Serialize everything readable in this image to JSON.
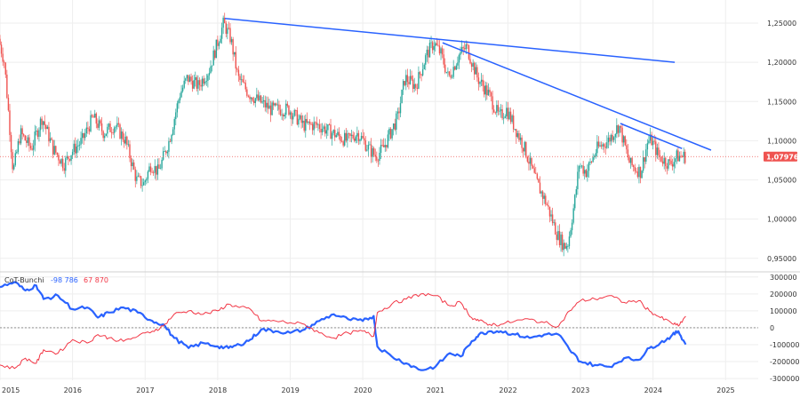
{
  "chart_data": [
    {
      "type": "candlestick",
      "pane": "price",
      "y_ticks": [
        "1,25000",
        "1,20000",
        "1,15000",
        "1,10000",
        "1,05000",
        "1,00000",
        "0,95000"
      ],
      "y_tick_values": [
        1.25,
        1.2,
        1.15,
        1.1,
        1.05,
        1.0,
        0.95
      ],
      "ylim": [
        0.935,
        1.275
      ],
      "current_price": 1.07976,
      "current_price_label": "1,07976",
      "price_path": [
        [
          2015.0,
          1.23
        ],
        [
          2015.08,
          1.2
        ],
        [
          2015.15,
          1.12
        ],
        [
          2015.2,
          1.06
        ],
        [
          2015.3,
          1.11
        ],
        [
          2015.45,
          1.09
        ],
        [
          2015.6,
          1.13
        ],
        [
          2015.75,
          1.09
        ],
        [
          2015.9,
          1.07
        ],
        [
          2016.0,
          1.085
        ],
        [
          2016.15,
          1.1
        ],
        [
          2016.3,
          1.13
        ],
        [
          2016.45,
          1.11
        ],
        [
          2016.6,
          1.12
        ],
        [
          2016.75,
          1.1
        ],
        [
          2016.9,
          1.05
        ],
        [
          2017.0,
          1.045
        ],
        [
          2017.1,
          1.07
        ],
        [
          2017.2,
          1.06
        ],
        [
          2017.35,
          1.1
        ],
        [
          2017.5,
          1.16
        ],
        [
          2017.6,
          1.18
        ],
        [
          2017.75,
          1.17
        ],
        [
          2017.9,
          1.19
        ],
        [
          2018.0,
          1.22
        ],
        [
          2018.1,
          1.25
        ],
        [
          2018.2,
          1.23
        ],
        [
          2018.3,
          1.18
        ],
        [
          2018.45,
          1.16
        ],
        [
          2018.6,
          1.15
        ],
        [
          2018.75,
          1.14
        ],
        [
          2018.9,
          1.14
        ],
        [
          2019.0,
          1.14
        ],
        [
          2019.2,
          1.12
        ],
        [
          2019.4,
          1.12
        ],
        [
          2019.6,
          1.11
        ],
        [
          2019.8,
          1.1
        ],
        [
          2019.95,
          1.11
        ],
        [
          2020.1,
          1.09
        ],
        [
          2020.2,
          1.08
        ],
        [
          2020.3,
          1.09
        ],
        [
          2020.5,
          1.13
        ],
        [
          2020.6,
          1.18
        ],
        [
          2020.75,
          1.17
        ],
        [
          2020.9,
          1.21
        ],
        [
          2021.0,
          1.225
        ],
        [
          2021.1,
          1.21
        ],
        [
          2021.2,
          1.18
        ],
        [
          2021.35,
          1.21
        ],
        [
          2021.45,
          1.22
        ],
        [
          2021.6,
          1.18
        ],
        [
          2021.75,
          1.16
        ],
        [
          2021.9,
          1.13
        ],
        [
          2022.0,
          1.14
        ],
        [
          2022.1,
          1.12
        ],
        [
          2022.25,
          1.09
        ],
        [
          2022.4,
          1.05
        ],
        [
          2022.55,
          1.02
        ],
        [
          2022.7,
          0.98
        ],
        [
          2022.8,
          0.965
        ],
        [
          2022.85,
          0.97
        ],
        [
          2022.95,
          1.03
        ],
        [
          2023.0,
          1.07
        ],
        [
          2023.1,
          1.06
        ],
        [
          2023.25,
          1.09
        ],
        [
          2023.4,
          1.1
        ],
        [
          2023.55,
          1.12
        ],
        [
          2023.7,
          1.07
        ],
        [
          2023.85,
          1.06
        ],
        [
          2023.95,
          1.1
        ],
        [
          2024.0,
          1.1
        ],
        [
          2024.1,
          1.08
        ],
        [
          2024.25,
          1.07
        ],
        [
          2024.35,
          1.08
        ],
        [
          2024.45,
          1.08
        ]
      ],
      "trendlines": [
        {
          "from": [
            2018.1,
            1.256
          ],
          "to": [
            2024.3,
            1.2
          ]
        },
        {
          "from": [
            2021.1,
            1.225
          ],
          "to": [
            2024.8,
            1.088
          ]
        },
        {
          "from": [
            2023.55,
            1.122
          ],
          "to": [
            2024.4,
            1.09
          ]
        }
      ]
    },
    {
      "type": "line",
      "pane": "indicator",
      "title": "CoT-Bunchi",
      "legend_values": [
        "-98 786",
        "67 870"
      ],
      "y_ticks": [
        "300000",
        "200000",
        "100000",
        "0",
        "-100000",
        "-200000",
        "-300000"
      ],
      "y_tick_values": [
        300000,
        200000,
        100000,
        0,
        -100000,
        -200000,
        -300000
      ],
      "ylim": [
        -310000,
        320000
      ],
      "series": [
        {
          "color": "#2962ff",
          "points": [
            [
              2015.0,
              240000
            ],
            [
              2015.2,
              270000
            ],
            [
              2015.35,
              220000
            ],
            [
              2015.5,
              250000
            ],
            [
              2015.6,
              170000
            ],
            [
              2015.8,
              190000
            ],
            [
              2016.0,
              110000
            ],
            [
              2016.2,
              120000
            ],
            [
              2016.35,
              60000
            ],
            [
              2016.5,
              90000
            ],
            [
              2016.7,
              120000
            ],
            [
              2016.9,
              90000
            ],
            [
              2017.1,
              40000
            ],
            [
              2017.25,
              20000
            ],
            [
              2017.4,
              -60000
            ],
            [
              2017.6,
              -120000
            ],
            [
              2017.8,
              -90000
            ],
            [
              2018.0,
              -110000
            ],
            [
              2018.15,
              -120000
            ],
            [
              2018.3,
              -100000
            ],
            [
              2018.45,
              -70000
            ],
            [
              2018.6,
              -10000
            ],
            [
              2018.8,
              -20000
            ],
            [
              2019.0,
              -30000
            ],
            [
              2019.2,
              -10000
            ],
            [
              2019.4,
              40000
            ],
            [
              2019.6,
              80000
            ],
            [
              2019.8,
              50000
            ],
            [
              2020.0,
              40000
            ],
            [
              2020.15,
              70000
            ],
            [
              2020.2,
              -110000
            ],
            [
              2020.4,
              -170000
            ],
            [
              2020.6,
              -210000
            ],
            [
              2020.8,
              -250000
            ],
            [
              2021.0,
              -230000
            ],
            [
              2021.2,
              -150000
            ],
            [
              2021.35,
              -170000
            ],
            [
              2021.5,
              -80000
            ],
            [
              2021.6,
              -40000
            ],
            [
              2021.75,
              -20000
            ],
            [
              2021.9,
              -20000
            ],
            [
              2022.1,
              -40000
            ],
            [
              2022.3,
              -60000
            ],
            [
              2022.5,
              -40000
            ],
            [
              2022.7,
              -40000
            ],
            [
              2022.85,
              -130000
            ],
            [
              2023.0,
              -200000
            ],
            [
              2023.2,
              -220000
            ],
            [
              2023.4,
              -230000
            ],
            [
              2023.6,
              -180000
            ],
            [
              2023.8,
              -190000
            ],
            [
              2023.95,
              -120000
            ],
            [
              2024.1,
              -90000
            ],
            [
              2024.25,
              -50000
            ],
            [
              2024.35,
              -20000
            ],
            [
              2024.45,
              -98786
            ]
          ]
        },
        {
          "color": "#f23645",
          "points": [
            [
              2015.0,
              -220000
            ],
            [
              2015.2,
              -240000
            ],
            [
              2015.35,
              -180000
            ],
            [
              2015.5,
              -210000
            ],
            [
              2015.6,
              -130000
            ],
            [
              2015.8,
              -150000
            ],
            [
              2016.0,
              -70000
            ],
            [
              2016.2,
              -90000
            ],
            [
              2016.35,
              -40000
            ],
            [
              2016.5,
              -60000
            ],
            [
              2016.7,
              -80000
            ],
            [
              2016.9,
              -50000
            ],
            [
              2017.1,
              -20000
            ],
            [
              2017.25,
              10000
            ],
            [
              2017.4,
              80000
            ],
            [
              2017.6,
              100000
            ],
            [
              2017.8,
              80000
            ],
            [
              2018.0,
              100000
            ],
            [
              2018.15,
              140000
            ],
            [
              2018.3,
              120000
            ],
            [
              2018.45,
              110000
            ],
            [
              2018.6,
              40000
            ],
            [
              2018.8,
              40000
            ],
            [
              2019.0,
              30000
            ],
            [
              2019.2,
              20000
            ],
            [
              2019.4,
              -30000
            ],
            [
              2019.6,
              -60000
            ],
            [
              2019.8,
              -30000
            ],
            [
              2020.0,
              -20000
            ],
            [
              2020.15,
              -50000
            ],
            [
              2020.2,
              90000
            ],
            [
              2020.4,
              140000
            ],
            [
              2020.6,
              170000
            ],
            [
              2020.8,
              200000
            ],
            [
              2021.0,
              190000
            ],
            [
              2021.2,
              130000
            ],
            [
              2021.35,
              150000
            ],
            [
              2021.5,
              60000
            ],
            [
              2021.6,
              40000
            ],
            [
              2021.75,
              20000
            ],
            [
              2021.9,
              20000
            ],
            [
              2022.1,
              40000
            ],
            [
              2022.3,
              50000
            ],
            [
              2022.5,
              30000
            ],
            [
              2022.7,
              10000
            ],
            [
              2022.85,
              100000
            ],
            [
              2023.0,
              160000
            ],
            [
              2023.2,
              170000
            ],
            [
              2023.4,
              190000
            ],
            [
              2023.6,
              150000
            ],
            [
              2023.8,
              160000
            ],
            [
              2023.95,
              100000
            ],
            [
              2024.1,
              60000
            ],
            [
              2024.25,
              30000
            ],
            [
              2024.35,
              10000
            ],
            [
              2024.45,
              67870
            ]
          ]
        }
      ]
    }
  ],
  "x_ticks": [
    "2015",
    "2016",
    "2017",
    "2018",
    "2019",
    "2020",
    "2021",
    "2022",
    "2023",
    "2024",
    "2025"
  ],
  "x_tick_values": [
    2015,
    2016,
    2017,
    2018,
    2019,
    2020,
    2021,
    2022,
    2023,
    2024,
    2025
  ],
  "colors": {
    "trendline": "#2962ff",
    "up_candle": "#26a69a",
    "down_candle": "#ef5350",
    "price_tag": "#ef5350",
    "grid": "#eeeeee"
  }
}
